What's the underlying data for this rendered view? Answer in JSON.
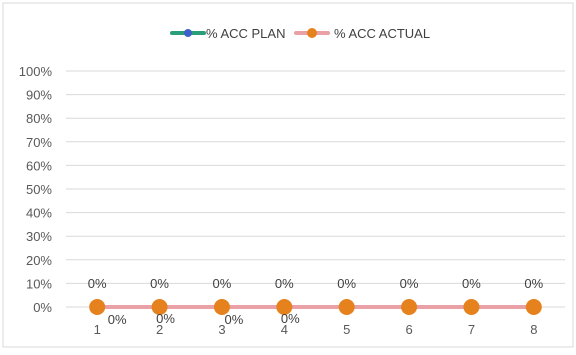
{
  "chart_data": {
    "type": "line",
    "title": "",
    "xlabel": "",
    "ylabel": "",
    "categories": [
      "1",
      "2",
      "3",
      "4",
      "5",
      "6",
      "7",
      "8"
    ],
    "ylim": [
      0,
      1
    ],
    "y_ticks": [
      "100%",
      "90%",
      "80%",
      "70%",
      "60%",
      "50%",
      "40%",
      "30%",
      "20%",
      "10%",
      "0%"
    ],
    "grid": true,
    "legend_position": "top",
    "series": [
      {
        "name": "% ACC PLAN",
        "values": [
          0,
          0,
          0,
          0,
          0,
          0,
          0,
          0
        ],
        "labels": [
          "0%",
          "0%",
          "0%",
          "0%",
          "0%",
          "0%",
          "0%",
          "0%"
        ],
        "line_color": "#2a9d7a",
        "marker_color": "#3d62c8"
      },
      {
        "name": "% ACC ACTUAL",
        "values": [
          0,
          0,
          0,
          0,
          0,
          0,
          0,
          0
        ],
        "labels": [
          "0%",
          "0%",
          "0%",
          "0%",
          "0%",
          "0%",
          "0%",
          "0%"
        ],
        "line_color": "#e9a1a6",
        "marker_color": "#e6821e"
      }
    ]
  }
}
